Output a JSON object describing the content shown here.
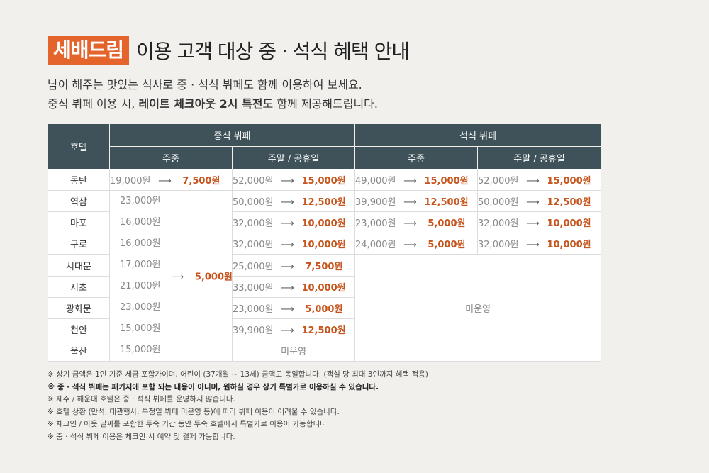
{
  "brand": "세배드림",
  "title": "이용 고객 대상 중 · 석식 혜택 안내",
  "intro": {
    "line1": "남이 해주는 맛있는 식사로 중 · 석식 뷔페도 함께 이용하여 보세요.",
    "line2_pre": "중식 뷔페 이용 시, ",
    "line2_bold": "레이트 체크아웃 2시 특전",
    "line2_post": "도 함께 제공해드립니다."
  },
  "table": {
    "hotel_header": "호텔",
    "lunch_header": "중식 뷔페",
    "dinner_header": "석식 뷔페",
    "weekday": "주중",
    "weekend": "주말 / 공휴일",
    "arrow": "⟶",
    "not_operated": "미운영",
    "rows": [
      {
        "hotel": "동탄",
        "lunch_weekday": {
          "old": "19,000원",
          "new": "7,500원"
        },
        "lunch_weekend": {
          "old": "52,000원",
          "new": "15,000원"
        },
        "dinner_weekday": {
          "old": "49,000원",
          "new": "15,000원"
        },
        "dinner_weekend": {
          "old": "52,000원",
          "new": "15,000원"
        }
      },
      {
        "hotel": "역삼",
        "lunch_weekday_old": "23,000원",
        "lunch_weekend": {
          "old": "50,000원",
          "new": "12,500원"
        },
        "dinner_weekday": {
          "old": "39,900원",
          "new": "12,500원"
        },
        "dinner_weekend": {
          "old": "50,000원",
          "new": "12,500원"
        }
      },
      {
        "hotel": "마포",
        "lunch_weekday_old": "16,000원",
        "lunch_weekend": {
          "old": "32,000원",
          "new": "10,000원"
        },
        "dinner_weekday": {
          "old": "23,000원",
          "new": "5,000원"
        },
        "dinner_weekend": {
          "old": "32,000원",
          "new": "10,000원"
        }
      },
      {
        "hotel": "구로",
        "lunch_weekday_old": "16,000원",
        "lunch_weekend": {
          "old": "32,000원",
          "new": "10,000원"
        },
        "dinner_weekday": {
          "old": "24,000원",
          "new": "5,000원"
        },
        "dinner_weekend": {
          "old": "32,000원",
          "new": "10,000원"
        }
      },
      {
        "hotel": "서대문",
        "lunch_weekday_old": "17,000원",
        "lunch_weekend": {
          "old": "25,000원",
          "new": "7,500원"
        }
      },
      {
        "hotel": "서초",
        "lunch_weekday_old": "21,000원",
        "lunch_weekend": {
          "old": "33,000원",
          "new": "10,000원"
        }
      },
      {
        "hotel": "광화문",
        "lunch_weekday_old": "23,000원",
        "lunch_weekend": {
          "old": "23,000원",
          "new": "5,000원"
        }
      },
      {
        "hotel": "천안",
        "lunch_weekday_old": "15,000원",
        "lunch_weekend": {
          "old": "39,900원",
          "new": "12,500원"
        }
      },
      {
        "hotel": "울산",
        "lunch_weekday_old": "15,000원"
      }
    ],
    "merged_lunch_weekday_new": "5,000원"
  },
  "notes": [
    "※ 상기 금액은 1인 기준 세금 포함가이며, 어린이 (37개월 ~ 13세) 금액도 동일합니다. (객실 당 최대 3인까지 혜택 적용)",
    "※ 중 · 석식 뷔페는 패키지에 포함 되는 내용이 아니며, 원하실 경우 상기 특별가로 이용하실 수 있습니다.",
    "※ 제주 / 해운대 호텔은 중 · 석식 뷔페를 운영하지 않습니다.",
    "※ 호텔 상황 (만석, 대관행사, 특정일 뷔페 미운영 등)에 따라 뷔페 이용이 어려울 수 있습니다.",
    "※ 체크인 / 아웃 날짜를 포함한 투숙 기간 동안 투숙 호텔에서 특별가로 이용이 가능합니다.",
    "※ 중 · 석식 뷔페 이용은 체크인 시 예약 및 결제 가능합니다."
  ]
}
